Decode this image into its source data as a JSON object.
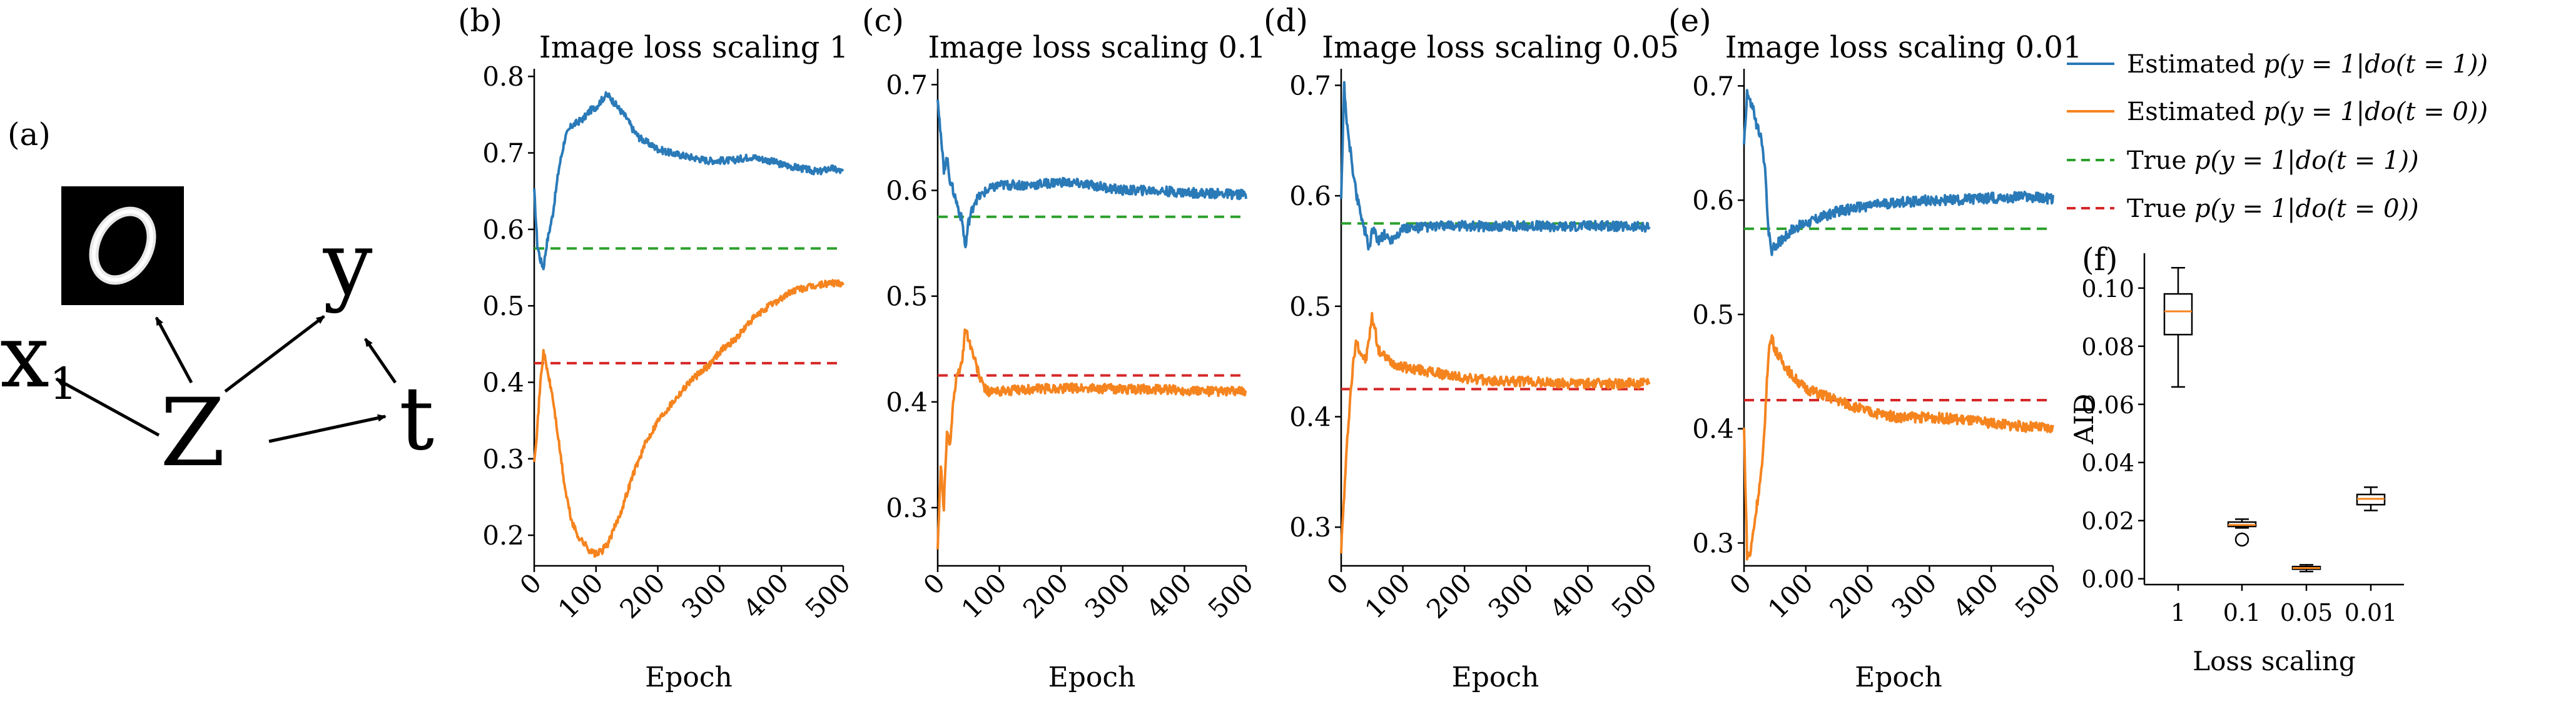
{
  "panel_letters": {
    "a": "(a)",
    "b": "(b)",
    "c": "(c)",
    "d": "(d)",
    "e": "(e)",
    "f": "(f)"
  },
  "diagram": {
    "nodes": {
      "z": "Z",
      "x": "x",
      "x_sub": "1",
      "y": "y",
      "t": "t"
    },
    "mnist_digit": "0"
  },
  "legend": {
    "entries": [
      {
        "prefix": "Estimated",
        "expr": "p(y = 1|do(t = 1))",
        "color": "#2a7ab8",
        "style": "solid"
      },
      {
        "prefix": "Estimated",
        "expr": "p(y = 1|do(t = 0))",
        "color": "#f5841f",
        "style": "solid"
      },
      {
        "prefix": "True",
        "expr": "p(y = 1|do(t = 1))",
        "color": "#2ca02c",
        "style": "dashed"
      },
      {
        "prefix": "True",
        "expr": "p(y = 1|do(t = 0))",
        "color": "#d62728",
        "style": "dashed"
      }
    ]
  },
  "chart_data": [
    {
      "type": "line",
      "title": "Image loss scaling 1",
      "xlabel": "Epoch",
      "ylabel": "",
      "xlim": [
        0,
        500
      ],
      "ylim": [
        0.16,
        0.81
      ],
      "xticks": [
        0,
        100,
        200,
        300,
        400,
        500
      ],
      "yticks": [
        0.2,
        0.3,
        0.4,
        0.5,
        0.6,
        0.7,
        0.8
      ],
      "true_t1": 0.575,
      "true_t0": 0.425,
      "est_t1": [
        [
          0,
          0.65
        ],
        [
          5,
          0.58
        ],
        [
          10,
          0.56
        ],
        [
          15,
          0.55
        ],
        [
          20,
          0.58
        ],
        [
          30,
          0.62
        ],
        [
          40,
          0.68
        ],
        [
          50,
          0.72
        ],
        [
          60,
          0.735
        ],
        [
          70,
          0.74
        ],
        [
          80,
          0.745
        ],
        [
          90,
          0.755
        ],
        [
          100,
          0.76
        ],
        [
          110,
          0.77
        ],
        [
          115,
          0.775
        ],
        [
          120,
          0.775
        ],
        [
          130,
          0.765
        ],
        [
          140,
          0.755
        ],
        [
          150,
          0.745
        ],
        [
          160,
          0.73
        ],
        [
          170,
          0.72
        ],
        [
          180,
          0.715
        ],
        [
          200,
          0.705
        ],
        [
          220,
          0.7
        ],
        [
          250,
          0.695
        ],
        [
          280,
          0.69
        ],
        [
          300,
          0.69
        ],
        [
          320,
          0.69
        ],
        [
          350,
          0.695
        ],
        [
          380,
          0.69
        ],
        [
          400,
          0.685
        ],
        [
          430,
          0.68
        ],
        [
          460,
          0.675
        ],
        [
          480,
          0.68
        ],
        [
          500,
          0.675
        ]
      ],
      "est_t0": [
        [
          0,
          0.3
        ],
        [
          5,
          0.34
        ],
        [
          10,
          0.4
        ],
        [
          15,
          0.44
        ],
        [
          20,
          0.42
        ],
        [
          30,
          0.38
        ],
        [
          40,
          0.32
        ],
        [
          50,
          0.26
        ],
        [
          60,
          0.22
        ],
        [
          70,
          0.2
        ],
        [
          80,
          0.19
        ],
        [
          90,
          0.18
        ],
        [
          100,
          0.175
        ],
        [
          110,
          0.18
        ],
        [
          120,
          0.19
        ],
        [
          140,
          0.23
        ],
        [
          160,
          0.28
        ],
        [
          180,
          0.32
        ],
        [
          200,
          0.35
        ],
        [
          220,
          0.37
        ],
        [
          250,
          0.4
        ],
        [
          280,
          0.42
        ],
        [
          300,
          0.44
        ],
        [
          330,
          0.46
        ],
        [
          350,
          0.48
        ],
        [
          380,
          0.5
        ],
        [
          400,
          0.51
        ],
        [
          420,
          0.52
        ],
        [
          450,
          0.525
        ],
        [
          480,
          0.53
        ],
        [
          500,
          0.53
        ]
      ]
    },
    {
      "type": "line",
      "title": "Image loss scaling 0.1",
      "xlabel": "Epoch",
      "ylabel": "",
      "xlim": [
        0,
        500
      ],
      "ylim": [
        0.245,
        0.715
      ],
      "xticks": [
        0,
        100,
        200,
        300,
        400,
        500
      ],
      "yticks": [
        0.3,
        0.4,
        0.5,
        0.6,
        0.7
      ],
      "true_t1": 0.575,
      "true_t0": 0.425,
      "est_t1": [
        [
          0,
          0.69
        ],
        [
          5,
          0.65
        ],
        [
          10,
          0.62
        ],
        [
          15,
          0.63
        ],
        [
          20,
          0.61
        ],
        [
          25,
          0.6
        ],
        [
          30,
          0.59
        ],
        [
          35,
          0.58
        ],
        [
          40,
          0.57
        ],
        [
          45,
          0.545
        ],
        [
          50,
          0.57
        ],
        [
          60,
          0.59
        ],
        [
          80,
          0.6
        ],
        [
          100,
          0.605
        ],
        [
          150,
          0.605
        ],
        [
          200,
          0.608
        ],
        [
          250,
          0.605
        ],
        [
          300,
          0.6
        ],
        [
          350,
          0.6
        ],
        [
          400,
          0.598
        ],
        [
          450,
          0.597
        ],
        [
          500,
          0.596
        ]
      ],
      "est_t0": [
        [
          0,
          0.26
        ],
        [
          5,
          0.34
        ],
        [
          10,
          0.3
        ],
        [
          15,
          0.37
        ],
        [
          20,
          0.36
        ],
        [
          25,
          0.4
        ],
        [
          30,
          0.42
        ],
        [
          40,
          0.44
        ],
        [
          45,
          0.47
        ],
        [
          50,
          0.46
        ],
        [
          60,
          0.44
        ],
        [
          70,
          0.42
        ],
        [
          80,
          0.41
        ],
        [
          100,
          0.41
        ],
        [
          150,
          0.412
        ],
        [
          200,
          0.413
        ],
        [
          250,
          0.413
        ],
        [
          300,
          0.412
        ],
        [
          350,
          0.412
        ],
        [
          400,
          0.411
        ],
        [
          450,
          0.41
        ],
        [
          500,
          0.41
        ]
      ]
    },
    {
      "type": "line",
      "title": "Image loss scaling 0.05",
      "xlabel": "Epoch",
      "ylabel": "",
      "xlim": [
        0,
        500
      ],
      "ylim": [
        0.265,
        0.715
      ],
      "xticks": [
        0,
        100,
        200,
        300,
        400,
        500
      ],
      "yticks": [
        0.3,
        0.4,
        0.5,
        0.6,
        0.7
      ],
      "true_t1": 0.575,
      "true_t0": 0.425,
      "est_t1": [
        [
          0,
          0.6
        ],
        [
          5,
          0.7
        ],
        [
          10,
          0.66
        ],
        [
          15,
          0.64
        ],
        [
          20,
          0.62
        ],
        [
          25,
          0.6
        ],
        [
          30,
          0.59
        ],
        [
          35,
          0.575
        ],
        [
          40,
          0.565
        ],
        [
          45,
          0.55
        ],
        [
          50,
          0.57
        ],
        [
          60,
          0.56
        ],
        [
          70,
          0.565
        ],
        [
          80,
          0.56
        ],
        [
          100,
          0.57
        ],
        [
          150,
          0.572
        ],
        [
          200,
          0.573
        ],
        [
          250,
          0.572
        ],
        [
          300,
          0.573
        ],
        [
          350,
          0.572
        ],
        [
          400,
          0.573
        ],
        [
          450,
          0.572
        ],
        [
          500,
          0.572
        ]
      ],
      "est_t0": [
        [
          0,
          0.28
        ],
        [
          5,
          0.33
        ],
        [
          10,
          0.38
        ],
        [
          15,
          0.42
        ],
        [
          20,
          0.45
        ],
        [
          25,
          0.47
        ],
        [
          30,
          0.46
        ],
        [
          40,
          0.45
        ],
        [
          50,
          0.49
        ],
        [
          55,
          0.48
        ],
        [
          60,
          0.46
        ],
        [
          70,
          0.455
        ],
        [
          80,
          0.45
        ],
        [
          100,
          0.445
        ],
        [
          150,
          0.44
        ],
        [
          200,
          0.435
        ],
        [
          250,
          0.432
        ],
        [
          300,
          0.432
        ],
        [
          350,
          0.43
        ],
        [
          400,
          0.43
        ],
        [
          450,
          0.43
        ],
        [
          500,
          0.43
        ]
      ]
    },
    {
      "type": "line",
      "title": "Image loss scaling 0.01",
      "xlabel": "Epoch",
      "ylabel": "",
      "xlim": [
        0,
        500
      ],
      "ylim": [
        0.28,
        0.715
      ],
      "xticks": [
        0,
        100,
        200,
        300,
        400,
        500
      ],
      "yticks": [
        0.3,
        0.4,
        0.5,
        0.6,
        0.7
      ],
      "true_t1": 0.575,
      "true_t0": 0.425,
      "est_t1": [
        [
          0,
          0.65
        ],
        [
          5,
          0.695
        ],
        [
          10,
          0.685
        ],
        [
          15,
          0.68
        ],
        [
          20,
          0.665
        ],
        [
          25,
          0.66
        ],
        [
          30,
          0.645
        ],
        [
          35,
          0.62
        ],
        [
          40,
          0.57
        ],
        [
          45,
          0.555
        ],
        [
          50,
          0.56
        ],
        [
          60,
          0.565
        ],
        [
          80,
          0.575
        ],
        [
          100,
          0.58
        ],
        [
          150,
          0.59
        ],
        [
          200,
          0.595
        ],
        [
          250,
          0.598
        ],
        [
          300,
          0.6
        ],
        [
          350,
          0.6
        ],
        [
          400,
          0.602
        ],
        [
          450,
          0.603
        ],
        [
          500,
          0.601
        ]
      ],
      "est_t0": [
        [
          0,
          0.4
        ],
        [
          5,
          0.29
        ],
        [
          10,
          0.29
        ],
        [
          15,
          0.31
        ],
        [
          20,
          0.33
        ],
        [
          25,
          0.35
        ],
        [
          30,
          0.37
        ],
        [
          35,
          0.42
        ],
        [
          40,
          0.47
        ],
        [
          45,
          0.48
        ],
        [
          50,
          0.47
        ],
        [
          60,
          0.46
        ],
        [
          80,
          0.445
        ],
        [
          100,
          0.435
        ],
        [
          150,
          0.425
        ],
        [
          200,
          0.415
        ],
        [
          250,
          0.41
        ],
        [
          300,
          0.41
        ],
        [
          350,
          0.408
        ],
        [
          400,
          0.405
        ],
        [
          450,
          0.402
        ],
        [
          500,
          0.4
        ]
      ]
    },
    {
      "type": "box",
      "xlabel": "Loss scaling",
      "ylabel": "AID",
      "categories": [
        "1",
        "0.1",
        "0.05",
        "0.01"
      ],
      "ylim": [
        -0.002,
        0.112
      ],
      "yticks": [
        0.0,
        0.02,
        0.04,
        0.06,
        0.08,
        0.1
      ],
      "ytick_labels": [
        "0.00",
        "0.02",
        "0.04",
        "0.06",
        "0.08",
        "0.10"
      ],
      "boxes": [
        {
          "whislo": 0.066,
          "q1": 0.084,
          "med": 0.092,
          "q3": 0.098,
          "whishi": 0.107,
          "fliers": []
        },
        {
          "whislo": 0.0175,
          "q1": 0.018,
          "med": 0.0185,
          "q3": 0.0195,
          "whishi": 0.0205,
          "fliers": [
            0.0135
          ]
        },
        {
          "whislo": 0.0025,
          "q1": 0.0033,
          "med": 0.0037,
          "q3": 0.0042,
          "whishi": 0.0048,
          "fliers": []
        },
        {
          "whislo": 0.0235,
          "q1": 0.0255,
          "med": 0.0275,
          "q3": 0.029,
          "whishi": 0.0315,
          "fliers": []
        }
      ]
    }
  ]
}
